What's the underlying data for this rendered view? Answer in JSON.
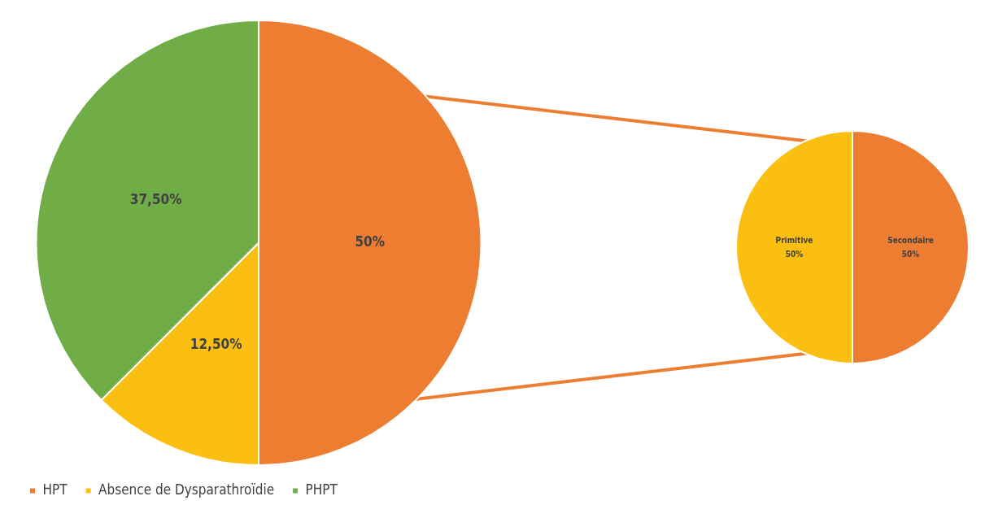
{
  "chart_data": [
    {
      "type": "pie",
      "categories": [
        "HPT",
        "Absence de Dysparathroïdie",
        "PHPT"
      ],
      "values": [
        50,
        12.5,
        37.5
      ],
      "colors": [
        "#ed7d31",
        "#fbbf12",
        "#70ad47"
      ],
      "value_labels": [
        "50%",
        "12,50%",
        "37,50%"
      ],
      "legend": "bottom"
    },
    {
      "type": "pie",
      "categories": [
        "Secondaire",
        "Primitive"
      ],
      "values": [
        50,
        50
      ],
      "colors": [
        "#ed7d31",
        "#fbbf12"
      ],
      "value_labels": [
        "50%",
        "50%"
      ],
      "legend": false
    }
  ]
}
